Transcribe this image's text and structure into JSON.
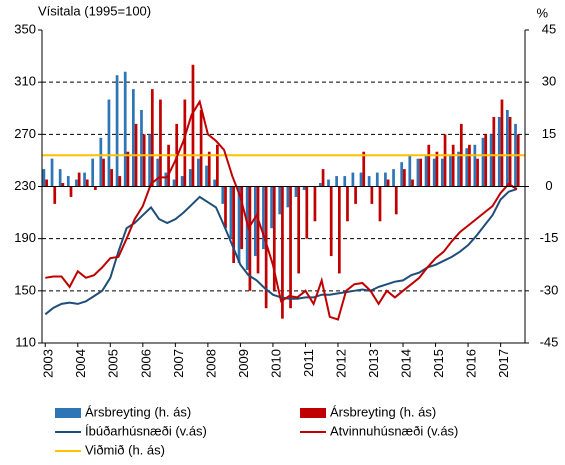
{
  "chart_data": {
    "type": "combo",
    "ylabel": "Vísitala (1995=100)",
    "y2label": "%",
    "x": [
      2003,
      2003.25,
      2003.5,
      2003.75,
      2004,
      2004.25,
      2004.5,
      2004.75,
      2005,
      2005.25,
      2005.5,
      2005.75,
      2006,
      2006.25,
      2006.5,
      2006.75,
      2007,
      2007.25,
      2007.5,
      2007.75,
      2008,
      2008.25,
      2008.5,
      2008.75,
      2009,
      2009.25,
      2009.5,
      2009.75,
      2010,
      2010.25,
      2010.5,
      2010.75,
      2011,
      2011.25,
      2011.5,
      2011.75,
      2012,
      2012.25,
      2012.5,
      2012.75,
      2013,
      2013.25,
      2013.5,
      2013.75,
      2014,
      2014.25,
      2014.5,
      2014.75,
      2015,
      2015.25,
      2015.5,
      2015.75,
      2016,
      2016.25,
      2016.5,
      2016.75,
      2017,
      2017.25,
      2017.5
    ],
    "xlim": [
      2002.9,
      2017.75
    ],
    "xticks": [
      2003,
      2004,
      2005,
      2006,
      2007,
      2008,
      2009,
      2010,
      2011,
      2012,
      2013,
      2014,
      2015,
      2016,
      2017
    ],
    "ylim": [
      110,
      350
    ],
    "yticks": [
      110,
      150,
      190,
      230,
      270,
      310,
      350
    ],
    "y2lim": [
      -45,
      45
    ],
    "y2ticks": [
      -45,
      -30,
      -15,
      0,
      15,
      30,
      45
    ],
    "grid": true,
    "series": [
      {
        "name": "Ársbreyting (h. ás)",
        "type": "bar",
        "axis": "y2",
        "color": "#2e75b6",
        "values": [
          5,
          8,
          5,
          3,
          2,
          4,
          8,
          14,
          25,
          32,
          33,
          28,
          22,
          15,
          8,
          4,
          2,
          3,
          5,
          8,
          6,
          2,
          -5,
          -15,
          -22,
          -24,
          -20,
          -18,
          -12,
          -8,
          -6,
          -3,
          -1,
          0,
          1,
          2,
          3,
          3,
          4,
          4,
          3,
          4,
          4,
          5,
          7,
          9,
          8,
          9,
          8,
          8,
          9,
          10,
          11,
          12,
          14,
          15,
          20,
          22,
          18
        ]
      },
      {
        "name": "Ársbreyting (h. ás)",
        "type": "bar",
        "axis": "y2",
        "color": "#c00000",
        "values": [
          2,
          -5,
          1,
          -3,
          4,
          2,
          -1,
          8,
          5,
          3,
          10,
          18,
          15,
          28,
          25,
          12,
          18,
          25,
          35,
          22,
          10,
          12,
          -12,
          -22,
          -18,
          -30,
          -25,
          -35,
          -30,
          -38,
          -35,
          -25,
          -15,
          -10,
          5,
          -20,
          -25,
          -10,
          -5,
          10,
          -5,
          -10,
          2,
          -8,
          5,
          2,
          8,
          12,
          10,
          15,
          12,
          18,
          12,
          8,
          15,
          20,
          25,
          20,
          15
        ]
      },
      {
        "name": "Íbúðarhúsnæði (v.ás)",
        "type": "line",
        "axis": "y",
        "color": "#1f4e79",
        "values": [
          132,
          137,
          140,
          141,
          140,
          142,
          146,
          150,
          160,
          180,
          198,
          202,
          208,
          214,
          205,
          202,
          205,
          210,
          216,
          222,
          218,
          214,
          200,
          185,
          170,
          162,
          158,
          152,
          147,
          145,
          144,
          144,
          145,
          145,
          147,
          147,
          148,
          149,
          150,
          151,
          150,
          153,
          155,
          157,
          158,
          162,
          164,
          168,
          170,
          173,
          176,
          180,
          185,
          192,
          200,
          208,
          220,
          226,
          228
        ]
      },
      {
        "name": "Atvinnuhúsnæði (v.ás)",
        "type": "line",
        "axis": "y",
        "color": "#c00000",
        "values": [
          160,
          161,
          161,
          153,
          165,
          160,
          162,
          168,
          175,
          176,
          190,
          205,
          215,
          232,
          237,
          237,
          250,
          265,
          285,
          295,
          270,
          265,
          258,
          238,
          222,
          198,
          208,
          190,
          170,
          142,
          146,
          145,
          150,
          140,
          158,
          130,
          128,
          150,
          155,
          156,
          150,
          140,
          150,
          145,
          150,
          155,
          160,
          168,
          175,
          180,
          188,
          195,
          200,
          205,
          210,
          215,
          225,
          232,
          228
        ]
      }
    ],
    "reference_lines": [
      {
        "name": "Viðmið (h. ás)",
        "axis": "y2",
        "value": 9,
        "color": "#ffc000"
      }
    ]
  }
}
